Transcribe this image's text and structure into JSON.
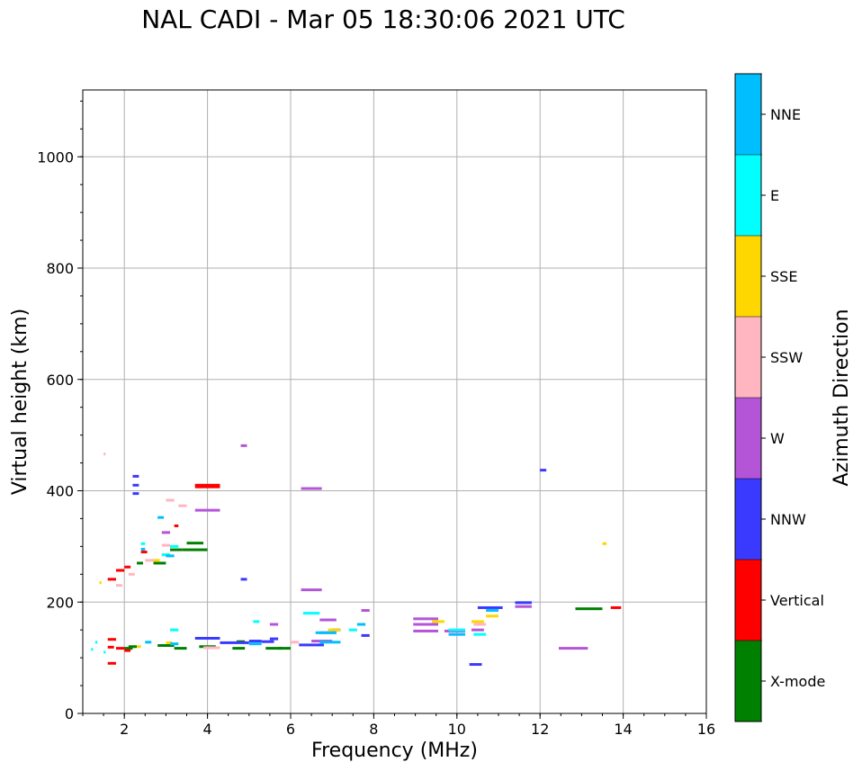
{
  "chart_data": {
    "type": "scatter",
    "title": "NAL CADI - Mar 05 18:30:06 2021 UTC",
    "xlabel": "Frequency (MHz)",
    "ylabel": "Virtual height (km)",
    "xlim": [
      1,
      16
    ],
    "ylim": [
      0,
      1120
    ],
    "xticks": [
      2,
      4,
      6,
      8,
      10,
      12,
      14,
      16
    ],
    "yticks": [
      0,
      200,
      400,
      600,
      800,
      1000
    ],
    "grid": true,
    "colorbar": {
      "label": "Azimuth Direction",
      "categories": [
        {
          "name": "X-mode",
          "color": "#008000"
        },
        {
          "name": "Vertical",
          "color": "#ff0000"
        },
        {
          "name": "NNW",
          "color": "#3a3aff"
        },
        {
          "name": "W",
          "color": "#b455d8"
        },
        {
          "name": "SSW",
          "color": "#ffb6c1"
        },
        {
          "name": "SSE",
          "color": "#ffd700"
        },
        {
          "name": "E",
          "color": "#00ffff"
        },
        {
          "name": "NNE",
          "color": "#00bfff"
        }
      ]
    },
    "series": [
      {
        "name": "X-mode",
        "points": [
          [
            2.0,
            117,
            0.2
          ],
          [
            2.1,
            120,
            0.2
          ],
          [
            2.8,
            122,
            0.4
          ],
          [
            3.2,
            117,
            0.3
          ],
          [
            3.8,
            120,
            0.4
          ],
          [
            4.6,
            117,
            0.3
          ],
          [
            4.7,
            129,
            0.2
          ],
          [
            5.4,
            117,
            0.4
          ],
          [
            5.7,
            117,
            0.3
          ],
          [
            2.3,
            270,
            0.15
          ],
          [
            2.7,
            270,
            0.3
          ],
          [
            3.1,
            294,
            0.3
          ],
          [
            3.5,
            306,
            0.4
          ],
          [
            3.4,
            294,
            0.6
          ],
          [
            12.85,
            188,
            0.65
          ]
        ]
      },
      {
        "name": "Vertical",
        "points": [
          [
            1.6,
            90,
            0.2
          ],
          [
            1.6,
            133,
            0.2
          ],
          [
            1.6,
            119,
            0.15
          ],
          [
            1.8,
            117,
            0.2
          ],
          [
            2.0,
            113,
            0.15
          ],
          [
            1.6,
            241,
            0.2
          ],
          [
            1.8,
            257,
            0.2
          ],
          [
            2.0,
            263,
            0.15
          ],
          [
            2.4,
            290,
            0.15
          ],
          [
            3.2,
            337,
            0.1
          ],
          [
            3.7,
            407,
            0.6
          ],
          [
            3.7,
            410,
            0.6
          ],
          [
            13.7,
            190,
            0.25
          ]
        ]
      },
      {
        "name": "NNW",
        "points": [
          [
            2.2,
            426,
            0.15
          ],
          [
            2.2,
            410,
            0.15
          ],
          [
            2.2,
            395,
            0.15
          ],
          [
            3.7,
            135,
            0.6
          ],
          [
            4.3,
            127,
            0.7
          ],
          [
            4.8,
            241,
            0.15
          ],
          [
            5.0,
            130,
            0.3
          ],
          [
            5.3,
            129,
            0.3
          ],
          [
            5.5,
            134,
            0.2
          ],
          [
            6.2,
            123,
            0.6
          ],
          [
            7.0,
            150,
            0.2
          ],
          [
            7.7,
            140,
            0.2
          ],
          [
            10.3,
            88,
            0.3
          ],
          [
            10.5,
            190,
            0.6
          ],
          [
            11.4,
            199,
            0.4
          ],
          [
            12.0,
            437,
            0.15
          ]
        ]
      },
      {
        "name": "W",
        "points": [
          [
            4.8,
            481,
            0.15
          ],
          [
            6.25,
            404,
            0.5
          ],
          [
            6.25,
            222,
            0.5
          ],
          [
            3.7,
            365,
            0.6
          ],
          [
            2.9,
            325,
            0.2
          ],
          [
            5.5,
            160,
            0.2
          ],
          [
            6.7,
            168,
            0.4
          ],
          [
            6.5,
            130,
            0.5
          ],
          [
            6.7,
            145,
            0.4
          ],
          [
            7.7,
            185,
            0.2
          ],
          [
            8.95,
            170,
            0.6
          ],
          [
            8.95,
            160,
            0.6
          ],
          [
            8.95,
            148,
            0.6
          ],
          [
            9.7,
            148,
            0.5
          ],
          [
            10.35,
            150,
            0.3
          ],
          [
            11.4,
            192,
            0.4
          ],
          [
            12.45,
            117,
            0.7
          ]
        ]
      },
      {
        "name": "SSW",
        "points": [
          [
            1.5,
            466,
            0.05
          ],
          [
            3.0,
            383,
            0.2
          ],
          [
            3.3,
            373,
            0.2
          ],
          [
            2.9,
            302,
            0.2
          ],
          [
            1.8,
            230,
            0.15
          ],
          [
            2.1,
            250,
            0.15
          ],
          [
            2.5,
            275,
            0.2
          ],
          [
            3.9,
            118,
            0.4
          ],
          [
            6.0,
            128,
            0.2
          ],
          [
            10.4,
            160,
            0.3
          ]
        ]
      },
      {
        "name": "SSE",
        "points": [
          [
            1.4,
            235,
            0.05
          ],
          [
            2.9,
            285,
            0.2
          ],
          [
            2.7,
            275,
            0.15
          ],
          [
            2.3,
            120,
            0.1
          ],
          [
            3.0,
            127,
            0.15
          ],
          [
            6.9,
            150,
            0.3
          ],
          [
            9.4,
            165,
            0.3
          ],
          [
            10.35,
            165,
            0.3
          ],
          [
            10.7,
            175,
            0.3
          ],
          [
            13.5,
            305,
            0.1
          ]
        ]
      },
      {
        "name": "E",
        "points": [
          [
            1.2,
            115,
            0.05
          ],
          [
            1.3,
            128,
            0.05
          ],
          [
            1.5,
            110,
            0.05
          ],
          [
            2.4,
            305,
            0.1
          ],
          [
            2.9,
            285,
            0.2
          ],
          [
            3.1,
            300,
            0.2
          ],
          [
            3.1,
            150,
            0.2
          ],
          [
            5.1,
            165,
            0.15
          ],
          [
            6.3,
            180,
            0.4
          ],
          [
            7.4,
            150,
            0.2
          ],
          [
            9.8,
            150,
            0.4
          ],
          [
            10.4,
            142,
            0.3
          ]
        ]
      },
      {
        "name": "NNE",
        "points": [
          [
            2.4,
            295,
            0.1
          ],
          [
            2.8,
            352,
            0.15
          ],
          [
            3.0,
            283,
            0.2
          ],
          [
            2.5,
            128,
            0.15
          ],
          [
            3.1,
            125,
            0.2
          ],
          [
            5.0,
            125,
            0.3
          ],
          [
            6.6,
            145,
            0.5
          ],
          [
            6.7,
            128,
            0.5
          ],
          [
            7.6,
            160,
            0.2
          ],
          [
            9.8,
            142,
            0.4
          ],
          [
            10.7,
            185,
            0.3
          ]
        ]
      }
    ]
  }
}
